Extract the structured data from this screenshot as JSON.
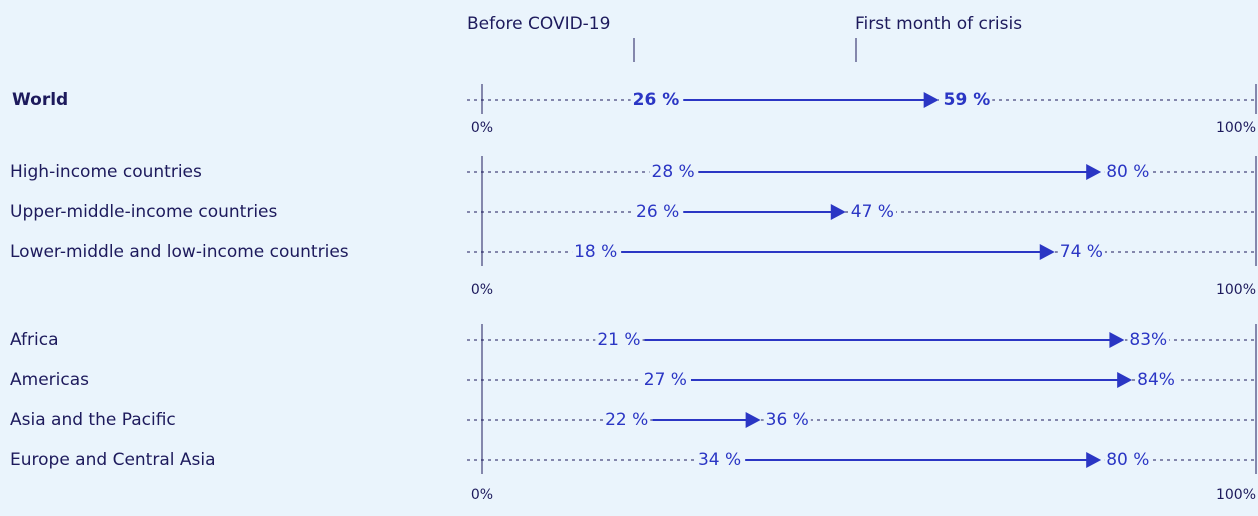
{
  "chart_data": [
    {
      "type": "arrow",
      "emphasis": true,
      "color": "#2b36c4",
      "categories": [
        "World"
      ],
      "series": [
        {
          "name": "Before COVID-19",
          "values": [
            26
          ],
          "value_labels": [
            "26 %"
          ]
        },
        {
          "name": "First month of crisis",
          "values": [
            59
          ],
          "value_labels": [
            "59 %"
          ]
        }
      ],
      "xlim": [
        0,
        100
      ],
      "xticks": [
        {
          "value": 0,
          "label": "0%"
        },
        {
          "value": 100,
          "label": "100%"
        }
      ]
    },
    {
      "type": "arrow",
      "color": "#2b36c4",
      "categories": [
        "High-income countries",
        "Upper-middle-income countries",
        "Lower-middle and low-income countries"
      ],
      "series": [
        {
          "values": [
            28,
            26,
            18
          ],
          "value_labels": [
            "28 %",
            "26 %",
            "18 %"
          ]
        },
        {
          "values": [
            80,
            47,
            74
          ],
          "value_labels": [
            "80 %",
            "47 %",
            "74 %"
          ]
        }
      ],
      "xlim": [
        0,
        100
      ],
      "xticks": [
        {
          "value": 0,
          "label": "0%"
        },
        {
          "value": 100,
          "label": "100%"
        }
      ]
    },
    {
      "type": "arrow",
      "color": "#2b36c4",
      "categories": [
        "Africa",
        "Americas",
        "Asia and the Pacific",
        "Europe and Central Asia"
      ],
      "series": [
        {
          "values": [
            21,
            27,
            22,
            34
          ],
          "value_labels": [
            "21 %",
            "27 %",
            "22 %",
            "34 %"
          ]
        },
        {
          "values": [
            83,
            84,
            36,
            80
          ],
          "value_labels": [
            "83%",
            "84%",
            "36 %",
            "80 %"
          ]
        }
      ],
      "xlim": [
        0,
        100
      ],
      "xticks": [
        {
          "value": 0,
          "label": "0%"
        },
        {
          "value": 100,
          "label": "100%"
        }
      ]
    }
  ]
}
